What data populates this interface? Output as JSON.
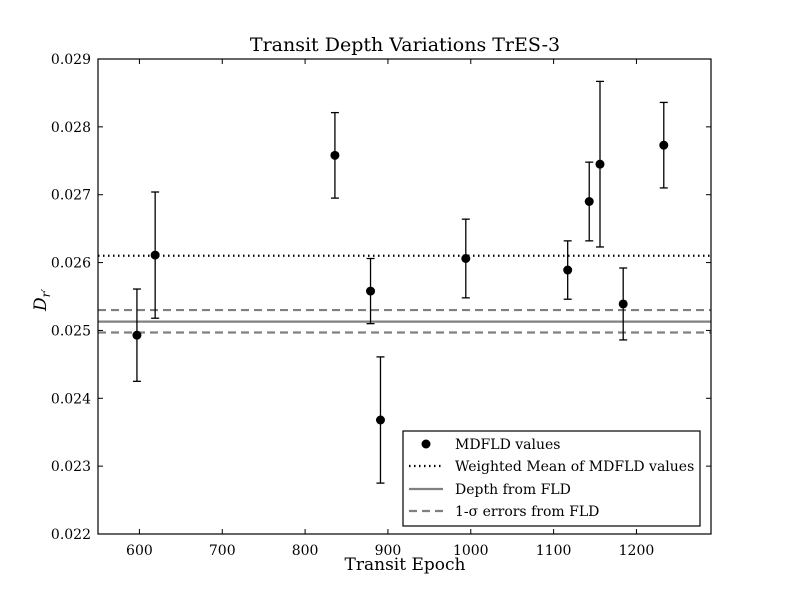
{
  "chart_data": {
    "type": "scatter",
    "title": "Transit Depth Variations TrES-3",
    "xlabel": "Transit Epoch",
    "ylabel_main": "D",
    "ylabel_sub": "r′",
    "xlim": [
      550,
      1290
    ],
    "ylim": [
      0.022,
      0.029
    ],
    "x_ticks": [
      600,
      700,
      800,
      900,
      1000,
      1100,
      1200
    ],
    "x_tick_labels": [
      "600",
      "700",
      "800",
      "900",
      "1000",
      "1100",
      "1200"
    ],
    "y_ticks": [
      0.022,
      0.023,
      0.024,
      0.025,
      0.026,
      0.027,
      0.028,
      0.029
    ],
    "y_tick_labels": [
      "0.022",
      "0.023",
      "0.024",
      "0.025",
      "0.026",
      "0.027",
      "0.028",
      "0.029"
    ],
    "grid": false,
    "legend_position": "lower-right",
    "series": [
      {
        "name": "MDFLD values",
        "points": [
          {
            "x": 597,
            "y": 0.02493,
            "err": 0.00068
          },
          {
            "x": 619,
            "y": 0.02611,
            "err": 0.00093
          },
          {
            "x": 836,
            "y": 0.02758,
            "err": 0.00063
          },
          {
            "x": 879,
            "y": 0.02558,
            "err": 0.00048
          },
          {
            "x": 891,
            "y": 0.02368,
            "err": 0.00093
          },
          {
            "x": 994,
            "y": 0.02606,
            "err": 0.00058
          },
          {
            "x": 1117,
            "y": 0.02589,
            "err": 0.00043
          },
          {
            "x": 1143,
            "y": 0.0269,
            "err": 0.00058
          },
          {
            "x": 1156,
            "y": 0.02745,
            "err": 0.00122
          },
          {
            "x": 1184,
            "y": 0.02539,
            "err": 0.00053
          },
          {
            "x": 1233,
            "y": 0.02773,
            "err": 0.00063
          }
        ]
      }
    ],
    "reference_lines": [
      {
        "name": "Weighted Mean of MDFLD values",
        "style": "dotted",
        "color": "#000000",
        "y": 0.0261
      },
      {
        "name": "Depth from FLD",
        "style": "solid",
        "color": "#808080",
        "y": 0.02513
      },
      {
        "name": "1-σ errors from FLD",
        "style": "dashed",
        "color": "#808080",
        "y": 0.0253
      },
      {
        "name": "1-σ errors from FLD",
        "style": "dashed",
        "color": "#808080",
        "y": 0.02497
      }
    ],
    "legend": [
      {
        "label": "MDFLD values",
        "kind": "marker"
      },
      {
        "label": "Weighted Mean of MDFLD values",
        "kind": "dotted"
      },
      {
        "label": "Depth from FLD",
        "kind": "solid"
      },
      {
        "label": "1-σ errors from FLD",
        "kind": "dashed"
      }
    ]
  }
}
